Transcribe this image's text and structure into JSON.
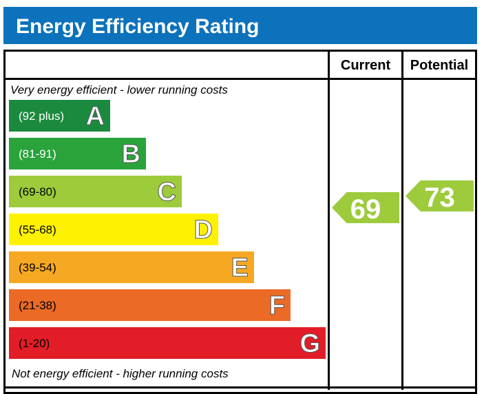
{
  "title": "Energy Efficiency Rating",
  "columns": {
    "current": "Current",
    "potential": "Potential"
  },
  "top_note": "Very energy efficient - lower running costs",
  "bottom_note": "Not energy efficient - higher running costs",
  "bands": [
    {
      "range": "(92 plus)",
      "letter": "A",
      "color": "#1b8a3e"
    },
    {
      "range": "(81-91)",
      "letter": "B",
      "color": "#2aa33b"
    },
    {
      "range": "(69-80)",
      "letter": "C",
      "color": "#9dcb3c"
    },
    {
      "range": "(55-68)",
      "letter": "D",
      "color": "#fff200"
    },
    {
      "range": "(39-54)",
      "letter": "E",
      "color": "#f7a823"
    },
    {
      "range": "(21-38)",
      "letter": "F",
      "color": "#ea6a26"
    },
    {
      "range": "(1-20)",
      "letter": "G",
      "color": "#e21d27"
    }
  ],
  "ratings": {
    "current": {
      "value": "69",
      "band": "C",
      "color": "#9dcb3c"
    },
    "potential": {
      "value": "73",
      "band": "C",
      "color": "#9dcb3c"
    }
  }
}
